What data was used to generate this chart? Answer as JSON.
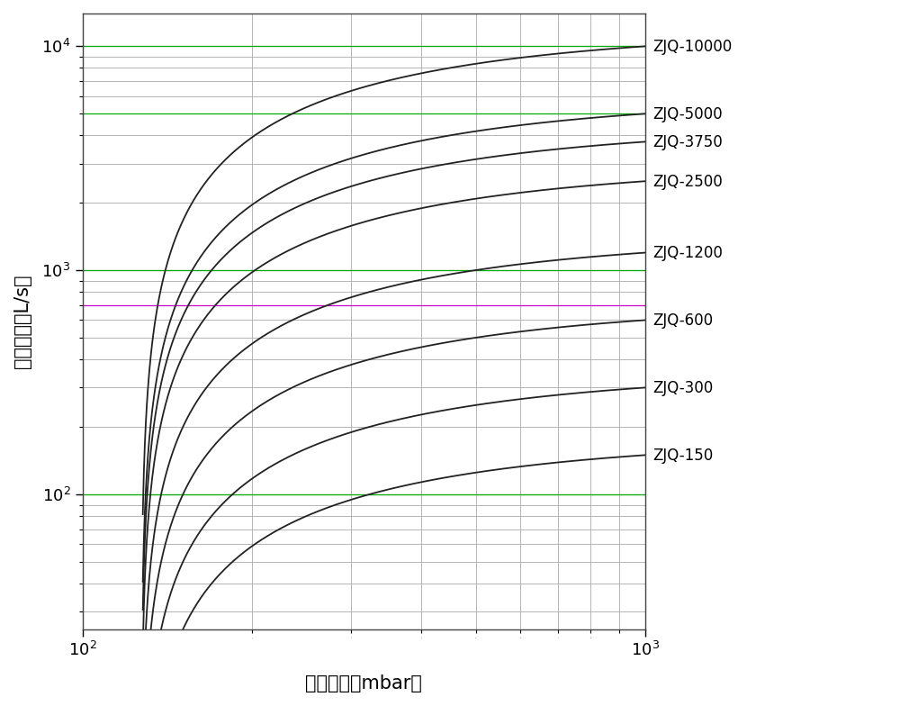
{
  "xlabel": "入口压力（mbar）",
  "ylabel": "抓气速率（L/s）",
  "xlim_log": [
    2,
    3
  ],
  "ylim": [
    25,
    14000
  ],
  "series": [
    {
      "label": "ZJQ-10000",
      "S_max": 10000
    },
    {
      "label": "ZJQ-5000",
      "S_max": 5000
    },
    {
      "label": "ZJQ-3750",
      "S_max": 3750
    },
    {
      "label": "ZJQ-2500",
      "S_max": 2500
    },
    {
      "label": "ZJQ-1200",
      "S_max": 1200
    },
    {
      "label": "ZJQ-600",
      "S_max": 600
    },
    {
      "label": "ZJQ-300",
      "S_max": 300
    },
    {
      "label": "ZJQ-150",
      "S_max": 150
    }
  ],
  "green_hlines": [
    10000,
    5000,
    1000,
    100
  ],
  "magenta_hlines": [
    700
  ],
  "grid_color": "#aaaaaa",
  "bg_color": "#ffffff",
  "label_fontsize": 15,
  "tick_fontsize": 13,
  "curve_color": "#222222",
  "p0": 127,
  "k_shape": 1.8
}
